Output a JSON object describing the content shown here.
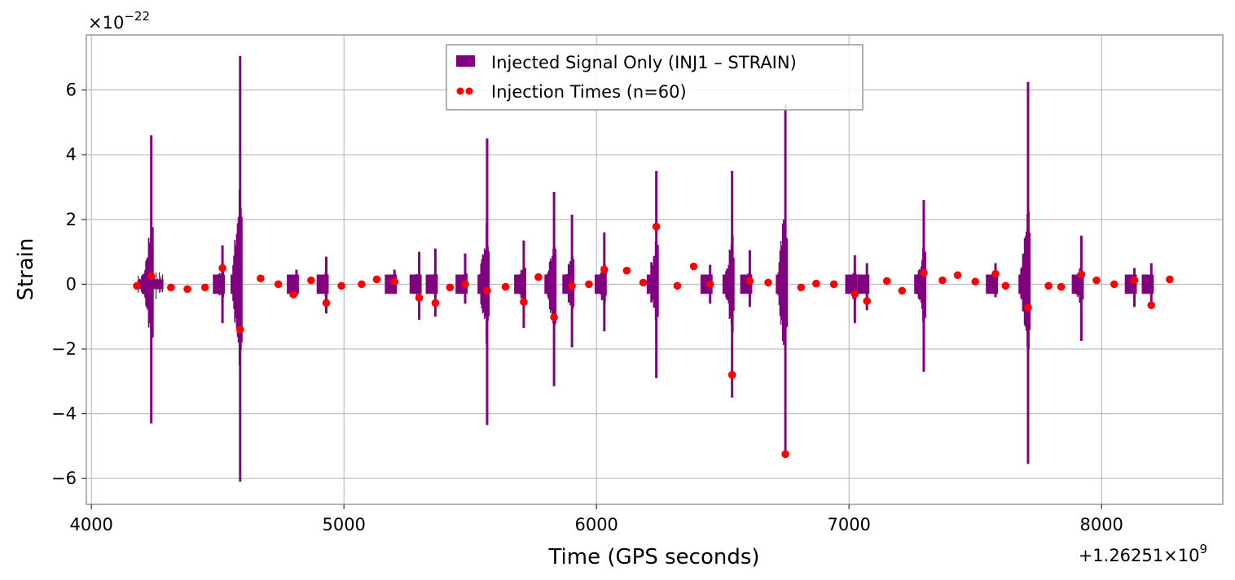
{
  "chart_data": {
    "type": "line",
    "xlabel": "Time (GPS seconds)",
    "ylabel": "Strain",
    "x_offset_label": "+1.26251×10",
    "x_offset_exponent": "9",
    "y_scale_label": "×10",
    "y_scale_exponent": "−22",
    "xlim": [
      3980,
      8480
    ],
    "ylim": [
      -6.8,
      7.7
    ],
    "x_ticks": [
      4000,
      5000,
      6000,
      7000,
      8000
    ],
    "x_tick_labels": [
      "4000",
      "5000",
      "6000",
      "7000",
      "8000"
    ],
    "y_ticks": [
      -6,
      -4,
      -2,
      0,
      2,
      4,
      6
    ],
    "y_tick_labels": [
      "−6",
      "−4",
      "−2",
      "0",
      "2",
      "4",
      "6"
    ],
    "grid": true,
    "legend_position": "top-center",
    "signal_color": "#800080",
    "marker_color": "#ff0000",
    "series": [
      {
        "name": "Injected Signal Only (INJ1 – STRAIN)",
        "style": "line",
        "t_start": 4185,
        "t_end": 4285,
        "baseline_band": 0.25,
        "spikes": [
          {
            "t": 4237,
            "max": 4.6,
            "min": -4.3
          },
          {
            "t": 4519,
            "max": 1.2,
            "min": -1.2
          },
          {
            "t": 4589,
            "max": 7.05,
            "min": -6.1
          },
          {
            "t": 4812,
            "max": 0.45,
            "min": -0.35
          },
          {
            "t": 4930,
            "max": 0.85,
            "min": -0.9
          },
          {
            "t": 5200,
            "max": 0.45,
            "min": -0.3
          },
          {
            "t": 5298,
            "max": 1.0,
            "min": -1.1
          },
          {
            "t": 5362,
            "max": 1.1,
            "min": -1.0
          },
          {
            "t": 5480,
            "max": 0.95,
            "min": -0.6
          },
          {
            "t": 5567,
            "max": 4.5,
            "min": -4.35
          },
          {
            "t": 5712,
            "max": 1.35,
            "min": -1.35
          },
          {
            "t": 5832,
            "max": 2.85,
            "min": -3.15
          },
          {
            "t": 5903,
            "max": 2.15,
            "min": -1.95
          },
          {
            "t": 6031,
            "max": 1.6,
            "min": -1.45
          },
          {
            "t": 6237,
            "max": 3.5,
            "min": -2.9
          },
          {
            "t": 6450,
            "max": 0.6,
            "min": -0.6
          },
          {
            "t": 6537,
            "max": 3.5,
            "min": -3.5
          },
          {
            "t": 6607,
            "max": 1.05,
            "min": -0.7
          },
          {
            "t": 6748,
            "max": 5.55,
            "min": -5.2
          },
          {
            "t": 7023,
            "max": 0.9,
            "min": -1.2
          },
          {
            "t": 7071,
            "max": 0.65,
            "min": -0.8
          },
          {
            "t": 7296,
            "max": 2.6,
            "min": -2.7
          },
          {
            "t": 7580,
            "max": 0.65,
            "min": -0.4
          },
          {
            "t": 7709,
            "max": 6.25,
            "min": -5.55
          },
          {
            "t": 7920,
            "max": 1.5,
            "min": -1.75
          },
          {
            "t": 8130,
            "max": 0.5,
            "min": -0.7
          },
          {
            "t": 8197,
            "max": 0.65,
            "min": -0.7
          }
        ]
      },
      {
        "name": "Injection Times (n=60)",
        "style": "markers",
        "x": [
          4180,
          4237,
          4315,
          4380,
          4450,
          4519,
          4589,
          4670,
          4740,
          4800,
          4870,
          4930,
          4990,
          5070,
          5130,
          5200,
          5298,
          5362,
          5420,
          5480,
          5567,
          5640,
          5712,
          5770,
          5832,
          5903,
          5970,
          6031,
          6120,
          6185,
          6237,
          6320,
          6385,
          6450,
          6537,
          6607,
          6680,
          6748,
          6810,
          6870,
          6940,
          7023,
          7071,
          7150,
          7210,
          7296,
          7370,
          7430,
          7500,
          7580,
          7620,
          7709,
          7790,
          7840,
          7920,
          7980,
          8050,
          8130,
          8197,
          8270
        ],
        "y": [
          -0.05,
          0.25,
          -0.1,
          -0.15,
          -0.1,
          0.5,
          -1.4,
          0.18,
          0.0,
          -0.32,
          0.12,
          -0.58,
          -0.05,
          0.0,
          0.15,
          0.08,
          -0.42,
          -0.58,
          -0.1,
          0.0,
          -0.2,
          -0.08,
          -0.55,
          0.22,
          -1.02,
          -0.05,
          0.0,
          0.45,
          0.42,
          0.05,
          1.78,
          -0.05,
          0.55,
          0.0,
          -2.8,
          0.1,
          0.05,
          -5.25,
          -0.1,
          0.02,
          0.0,
          -0.3,
          -0.52,
          0.1,
          -0.2,
          0.35,
          0.12,
          0.28,
          0.08,
          0.32,
          -0.05,
          -0.72,
          -0.05,
          -0.08,
          0.3,
          0.12,
          0.0,
          0.12,
          -0.65,
          0.15
        ]
      }
    ]
  }
}
